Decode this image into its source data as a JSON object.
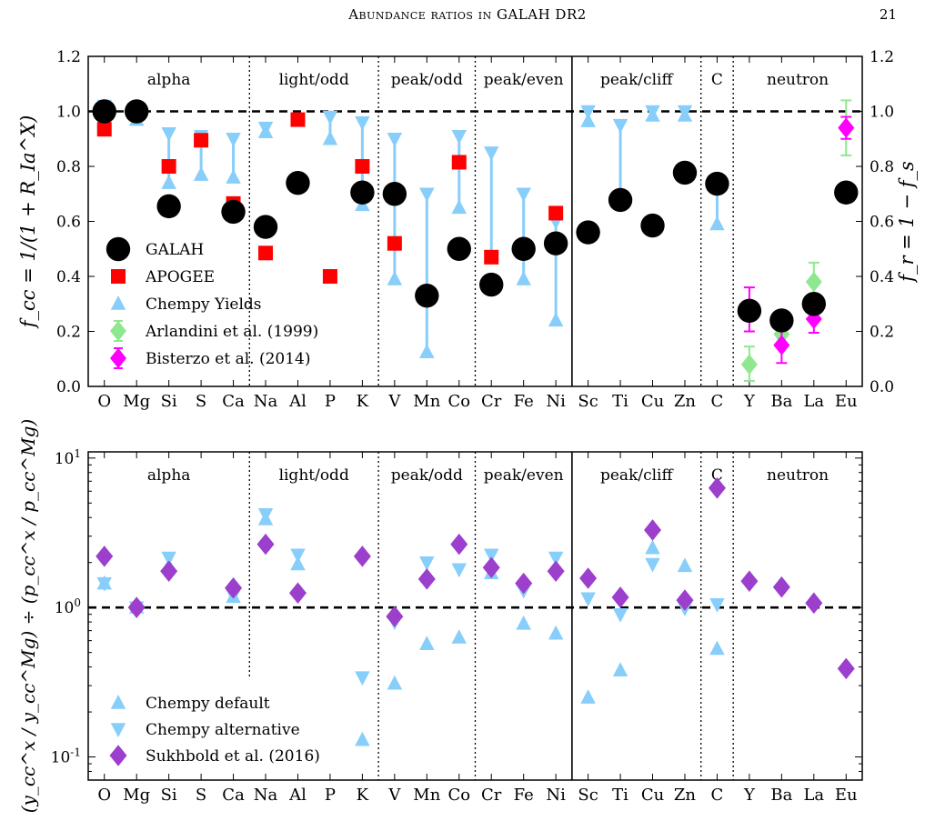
{
  "header": {
    "running_title": "Abundance ratios in GALAH DR2",
    "page_number": "21"
  },
  "chart_data": [
    {
      "type": "scatter",
      "left_ylabel": "f_cc = 1/(1 + R_Ia^X)",
      "right_ylabel": "f_r = 1 − f_s",
      "ylim": [
        0,
        1.2
      ],
      "yticks": [
        "0.0",
        "0.2",
        "0.4",
        "0.6",
        "0.8",
        "1.0",
        "1.2"
      ],
      "reference_line": 1.0,
      "categories": [
        "O",
        "Mg",
        "Si",
        "S",
        "Ca",
        "Na",
        "Al",
        "P",
        "K",
        "V",
        "Mn",
        "Co",
        "Cr",
        "Fe",
        "Ni",
        "Sc",
        "Ti",
        "Cu",
        "Zn",
        "C",
        "Y",
        "Ba",
        "La",
        "Eu"
      ],
      "groups": [
        {
          "label": "alpha",
          "start": 0,
          "end": 4
        },
        {
          "label": "light/odd",
          "start": 5,
          "end": 8
        },
        {
          "label": "peak/odd",
          "start": 9,
          "end": 11
        },
        {
          "label": "peak/even",
          "start": 12,
          "end": 14
        },
        {
          "label": "peak/cliff",
          "start": 15,
          "end": 18
        },
        {
          "label": "C",
          "start": 19,
          "end": 19
        },
        {
          "label": "neutron",
          "start": 20,
          "end": 23
        }
      ],
      "legend": [
        "GALAH",
        "APOGEE",
        "Chempy Yields",
        "Arlandini et al. (1999)",
        "Bisterzo et al. (2014)"
      ],
      "series": [
        {
          "name": "GALAH",
          "marker": "circle",
          "color": "#000000",
          "values": [
            1.0,
            1.0,
            0.655,
            null,
            0.635,
            0.58,
            0.74,
            null,
            0.705,
            0.7,
            0.33,
            0.5,
            0.37,
            0.5,
            0.52,
            0.56,
            0.678,
            0.585,
            0.777,
            0.737,
            0.275,
            0.24,
            0.3,
            0.705
          ]
        },
        {
          "name": "APOGEE",
          "marker": "square",
          "color": "#ff0000",
          "values": [
            0.935,
            1.0,
            0.8,
            0.895,
            0.665,
            0.485,
            0.97,
            0.4,
            0.8,
            0.52,
            0.335,
            0.815,
            0.47,
            0.5,
            0.63,
            null,
            null,
            null,
            null,
            null,
            null,
            null,
            null,
            null
          ]
        },
        {
          "name": "Chempy Yields",
          "color": "#87cefa",
          "ranges": [
            [
              1.0,
              1.02
            ],
            [
              0.97,
              1.0
            ],
            [
              0.74,
              0.92
            ],
            [
              0.77,
              0.91
            ],
            [
              0.76,
              0.9
            ],
            [
              0.925,
              0.94
            ],
            null,
            [
              0.9,
              0.98
            ],
            [
              0.66,
              0.96
            ],
            [
              0.39,
              0.9
            ],
            [
              0.125,
              0.7
            ],
            [
              0.65,
              0.91
            ],
            [
              0.47,
              0.85
            ],
            [
              0.39,
              0.7
            ],
            [
              0.24,
              0.6
            ],
            [
              0.965,
              1.0
            ],
            [
              0.675,
              0.95
            ],
            [
              0.985,
              1.0
            ],
            [
              0.985,
              1.0
            ],
            [
              0.59,
              0.73
            ],
            null,
            null,
            null,
            null
          ]
        },
        {
          "name": "Arlandini et al. (1999)",
          "marker": "diamond",
          "color": "#8fe88f",
          "points": [
            {
              "cat": "Y",
              "value": 0.08,
              "err": [
                0.02,
                0.145
              ]
            },
            {
              "cat": "Ba",
              "value": 0.19,
              "err": [
                0.18,
                0.2
              ]
            },
            {
              "cat": "La",
              "value": 0.38,
              "err": [
                0.31,
                0.45
              ]
            },
            {
              "cat": "Eu",
              "value": 0.94,
              "err": [
                0.84,
                1.04
              ]
            }
          ]
        },
        {
          "name": "Bisterzo et al. (2014)",
          "marker": "diamond",
          "color": "#ff00ff",
          "points": [
            {
              "cat": "Y",
              "value": 0.27,
              "err": [
                0.2,
                0.36
              ]
            },
            {
              "cat": "Ba",
              "value": 0.15,
              "err": [
                0.085,
                0.21
              ]
            },
            {
              "cat": "La",
              "value": 0.245,
              "err": [
                0.195,
                0.295
              ]
            },
            {
              "cat": "Eu",
              "value": 0.94,
              "err": [
                0.9,
                0.98
              ]
            }
          ]
        }
      ]
    },
    {
      "type": "scatter",
      "ylabel": "(y_cc^x / y_cc^Mg) ÷ (p_cc^x / p_cc^Mg)",
      "log_scale": true,
      "ylim": [
        0.07,
        11
      ],
      "yticks": [
        "10^-1",
        "10^0",
        "10^1"
      ],
      "reference_line": 1.0,
      "categories": [
        "O",
        "Mg",
        "Si",
        "S",
        "Ca",
        "Na",
        "Al",
        "P",
        "K",
        "V",
        "Mn",
        "Co",
        "Cr",
        "Fe",
        "Ni",
        "Sc",
        "Ti",
        "Cu",
        "Zn",
        "C",
        "Y",
        "Ba",
        "La",
        "Eu"
      ],
      "groups": [
        {
          "label": "alpha",
          "start": 0,
          "end": 4
        },
        {
          "label": "light/odd",
          "start": 5,
          "end": 8
        },
        {
          "label": "peak/odd",
          "start": 9,
          "end": 11
        },
        {
          "label": "peak/even",
          "start": 12,
          "end": 14
        },
        {
          "label": "peak/cliff",
          "start": 15,
          "end": 18
        },
        {
          "label": "C",
          "start": 19,
          "end": 19
        },
        {
          "label": "neutron",
          "start": 20,
          "end": 23
        }
      ],
      "legend": [
        "Chempy default",
        "Chempy alternative",
        "Sukhbold et al. (2016)"
      ],
      "series": [
        {
          "name": "Chempy default",
          "marker": "triangle-up",
          "color": "#87cefa",
          "values": [
            1.45,
            1.0,
            1.9,
            null,
            1.18,
            3.9,
            1.95,
            null,
            0.13,
            0.31,
            0.57,
            0.63,
            1.7,
            0.78,
            0.67,
            0.25,
            0.38,
            2.5,
            1.9,
            0.53,
            null,
            null,
            null,
            null
          ]
        },
        {
          "name": "Chempy alternative",
          "marker": "triangle-down",
          "color": "#87cefa",
          "values": [
            1.45,
            1.0,
            2.15,
            null,
            1.2,
            4.2,
            2.25,
            null,
            0.34,
            0.8,
            2.0,
            1.8,
            2.25,
            1.3,
            2.15,
            1.15,
            0.9,
            1.95,
            0.99,
            1.05,
            null,
            null,
            null,
            null
          ]
        },
        {
          "name": "Sukhbold et al. (2016)",
          "marker": "diamond",
          "color": "#9b3fcc",
          "values": [
            2.2,
            1.0,
            1.75,
            null,
            1.35,
            2.65,
            1.25,
            null,
            2.2,
            0.87,
            1.55,
            2.65,
            1.85,
            1.45,
            1.75,
            1.57,
            1.17,
            3.3,
            1.12,
            6.3,
            1.5,
            1.37,
            1.07,
            0.39
          ]
        }
      ]
    }
  ]
}
